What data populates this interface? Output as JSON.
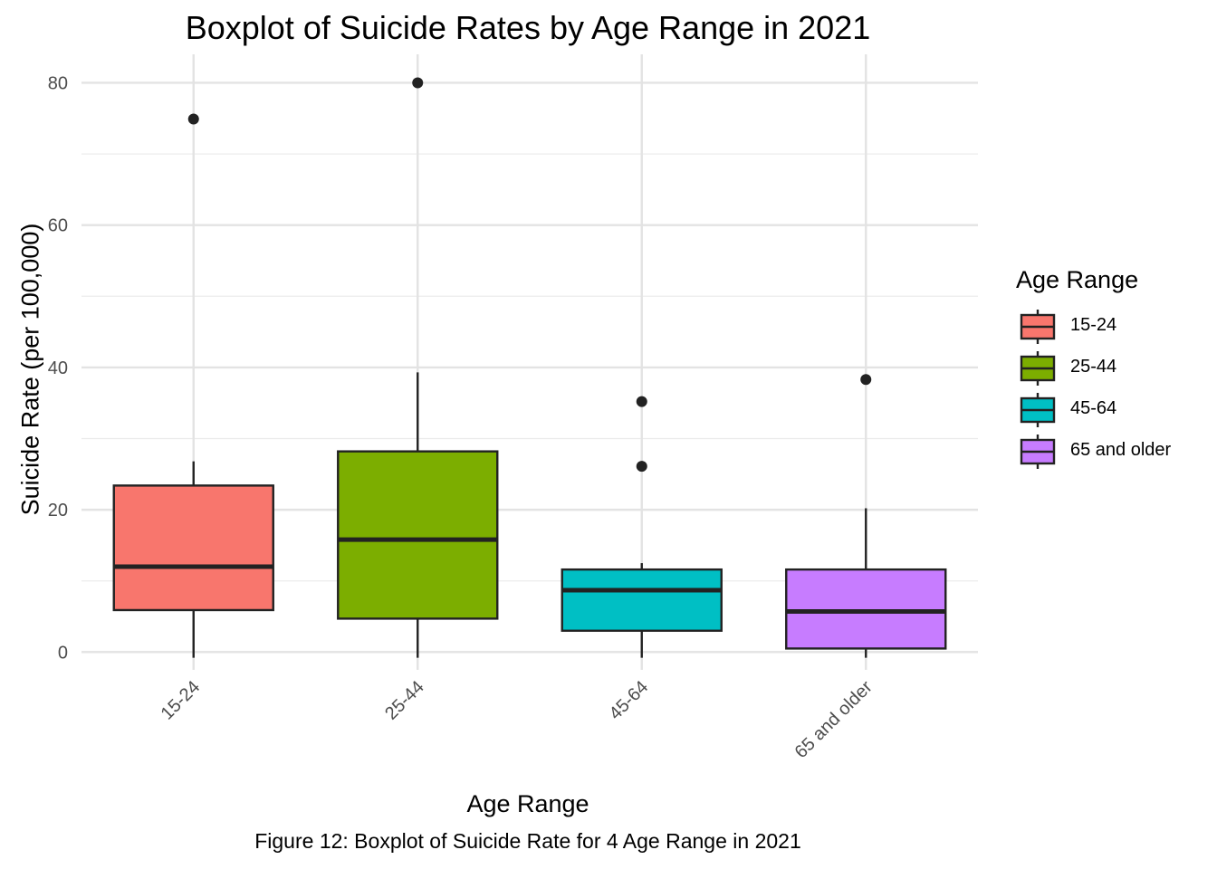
{
  "title": "Boxplot of Suicide Rates by Age Range in 2021",
  "caption": "Figure 12: Boxplot of Suicide Rate for 4 Age Range in 2021",
  "chart_data": {
    "type": "boxplot",
    "title": "Boxplot of Suicide Rates by Age Range in 2021",
    "xlabel": "Age Range",
    "ylabel": "Suicide Rate (per 100,000)",
    "ylim": [
      -2.5,
      84
    ],
    "yticks": [
      0,
      20,
      40,
      60,
      80
    ],
    "grid": true,
    "legend": {
      "title": "Age Range",
      "position": "right",
      "entries": [
        "15-24",
        "25-44",
        "45-64",
        "65 and older"
      ]
    },
    "categories": [
      "15-24",
      "25-44",
      "45-64",
      "65 and older"
    ],
    "boxes": [
      {
        "category": "15-24",
        "color": "#F8766D",
        "whisker_low": -0.8,
        "q1": 5.9,
        "median": 12.0,
        "q3": 23.4,
        "whisker_high": 26.8,
        "outliers": [
          74.9
        ]
      },
      {
        "category": "25-44",
        "color": "#7CAE00",
        "whisker_low": -0.8,
        "q1": 4.7,
        "median": 15.8,
        "q3": 28.2,
        "whisker_high": 39.3,
        "outliers": [
          80.0
        ]
      },
      {
        "category": "45-64",
        "color": "#00BFC4",
        "whisker_low": -0.8,
        "q1": 3.0,
        "median": 8.7,
        "q3": 11.6,
        "whisker_high": 12.5,
        "outliers": [
          35.2,
          26.1
        ]
      },
      {
        "category": "65 and older",
        "color": "#C77CFF",
        "whisker_low": -0.8,
        "q1": 0.5,
        "median": 5.7,
        "q3": 11.6,
        "whisker_high": 20.2,
        "outliers": [
          38.3
        ]
      }
    ]
  }
}
